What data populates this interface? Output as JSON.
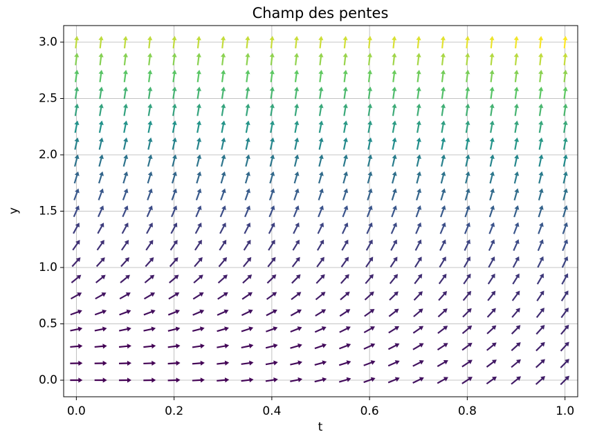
{
  "chart_data": {
    "type": "quiver",
    "title": "Champ des pentes",
    "x_label": "t",
    "y_label": "y",
    "x": [
      0,
      0.05,
      0.1,
      0.15,
      0.2,
      0.25,
      0.3,
      0.35,
      0.4,
      0.45,
      0.5,
      0.55,
      0.6,
      0.65,
      0.7,
      0.75,
      0.8,
      0.85,
      0.9,
      0.95,
      1
    ],
    "y": [
      0,
      0.15,
      0.3,
      0.45,
      0.6,
      0.75,
      0.9,
      1.05,
      1.2,
      1.35,
      1.5,
      1.65,
      1.8,
      1.95,
      2.1,
      2.25,
      2.4,
      2.55,
      2.7,
      2.85,
      3
    ],
    "slopes": [
      [
        0,
        0,
        0.01,
        0.02,
        0.04,
        0.06,
        0.09,
        0.12,
        0.16,
        0.2,
        0.25,
        0.3,
        0.36,
        0.42,
        0.49,
        0.56,
        0.64,
        0.72,
        0.81,
        0.9,
        1
      ],
      [
        0.02,
        0.02,
        0.03,
        0.04,
        0.06,
        0.08,
        0.11,
        0.14,
        0.18,
        0.22,
        0.27,
        0.32,
        0.38,
        0.44,
        0.51,
        0.58,
        0.66,
        0.74,
        0.83,
        0.92,
        1.02
      ],
      [
        0.09,
        0.09,
        0.1,
        0.11,
        0.13,
        0.15,
        0.18,
        0.21,
        0.25,
        0.29,
        0.34,
        0.39,
        0.45,
        0.51,
        0.58,
        0.65,
        0.73,
        0.81,
        0.9,
        0.99,
        1.09
      ],
      [
        0.2,
        0.2,
        0.21,
        0.22,
        0.24,
        0.26,
        0.29,
        0.32,
        0.36,
        0.4,
        0.45,
        0.5,
        0.56,
        0.62,
        0.69,
        0.76,
        0.84,
        0.92,
        1.01,
        1.1,
        1.2
      ],
      [
        0.36,
        0.36,
        0.37,
        0.38,
        0.4,
        0.42,
        0.45,
        0.48,
        0.52,
        0.56,
        0.61,
        0.66,
        0.72,
        0.78,
        0.85,
        0.92,
        1,
        1.08,
        1.17,
        1.26,
        1.36
      ],
      [
        0.56,
        0.56,
        0.57,
        0.58,
        0.6,
        0.62,
        0.65,
        0.68,
        0.72,
        0.76,
        0.81,
        0.86,
        0.92,
        0.98,
        1.05,
        1.12,
        1.2,
        1.28,
        1.37,
        1.46,
        1.56
      ],
      [
        0.81,
        0.81,
        0.82,
        0.83,
        0.85,
        0.87,
        0.9,
        0.93,
        0.97,
        1.01,
        1.06,
        1.11,
        1.17,
        1.23,
        1.3,
        1.37,
        1.45,
        1.53,
        1.62,
        1.71,
        1.81
      ],
      [
        1.1,
        1.1,
        1.11,
        1.12,
        1.14,
        1.16,
        1.19,
        1.22,
        1.26,
        1.3,
        1.35,
        1.4,
        1.46,
        1.52,
        1.59,
        1.66,
        1.74,
        1.82,
        1.91,
        2,
        2.1
      ],
      [
        1.44,
        1.44,
        1.45,
        1.46,
        1.48,
        1.5,
        1.53,
        1.56,
        1.6,
        1.64,
        1.69,
        1.74,
        1.8,
        1.86,
        1.93,
        2,
        2.08,
        2.16,
        2.25,
        2.34,
        2.44
      ],
      [
        1.82,
        1.82,
        1.83,
        1.84,
        1.86,
        1.88,
        1.91,
        1.94,
        1.98,
        2.02,
        2.07,
        2.12,
        2.18,
        2.24,
        2.31,
        2.38,
        2.46,
        2.54,
        2.63,
        2.72,
        2.82
      ],
      [
        2.25,
        2.25,
        2.26,
        2.27,
        2.29,
        2.31,
        2.34,
        2.37,
        2.41,
        2.45,
        2.5,
        2.55,
        2.61,
        2.67,
        2.74,
        2.81,
        2.89,
        2.97,
        3.06,
        3.15,
        3.25
      ],
      [
        2.72,
        2.72,
        2.73,
        2.74,
        2.76,
        2.78,
        2.81,
        2.84,
        2.88,
        2.92,
        2.97,
        3.02,
        3.08,
        3.14,
        3.21,
        3.28,
        3.36,
        3.44,
        3.53,
        3.62,
        3.72
      ],
      [
        3.24,
        3.24,
        3.25,
        3.26,
        3.28,
        3.3,
        3.33,
        3.36,
        3.4,
        3.44,
        3.49,
        3.54,
        3.6,
        3.66,
        3.73,
        3.8,
        3.88,
        3.96,
        4.05,
        4.14,
        4.24
      ],
      [
        3.8,
        3.8,
        3.81,
        3.82,
        3.84,
        3.86,
        3.89,
        3.92,
        3.96,
        4,
        4.05,
        4.1,
        4.16,
        4.22,
        4.29,
        4.36,
        4.44,
        4.52,
        4.61,
        4.7,
        4.8
      ],
      [
        4.41,
        4.41,
        4.42,
        4.43,
        4.45,
        4.47,
        4.5,
        4.53,
        4.57,
        4.61,
        4.66,
        4.71,
        4.77,
        4.83,
        4.9,
        4.97,
        5.05,
        5.13,
        5.22,
        5.31,
        5.41
      ],
      [
        5.06,
        5.06,
        5.07,
        5.08,
        5.1,
        5.12,
        5.15,
        5.18,
        5.22,
        5.26,
        5.31,
        5.36,
        5.42,
        5.48,
        5.55,
        5.62,
        5.7,
        5.78,
        5.87,
        5.96,
        6.06
      ],
      [
        5.76,
        5.76,
        5.77,
        5.78,
        5.8,
        5.82,
        5.85,
        5.88,
        5.92,
        5.96,
        6.01,
        6.06,
        6.12,
        6.18,
        6.25,
        6.32,
        6.4,
        6.48,
        6.57,
        6.66,
        6.76
      ],
      [
        6.5,
        6.5,
        6.51,
        6.52,
        6.54,
        6.56,
        6.59,
        6.62,
        6.66,
        6.7,
        6.75,
        6.8,
        6.86,
        6.92,
        6.99,
        7.06,
        7.14,
        7.22,
        7.31,
        7.4,
        7.5
      ],
      [
        7.29,
        7.29,
        7.3,
        7.31,
        7.33,
        7.35,
        7.38,
        7.41,
        7.45,
        7.49,
        7.54,
        7.59,
        7.65,
        7.71,
        7.78,
        7.85,
        7.93,
        8.01,
        8.1,
        8.19,
        8.29
      ],
      [
        8.12,
        8.12,
        8.13,
        8.14,
        8.16,
        8.18,
        8.21,
        8.24,
        8.28,
        8.32,
        8.37,
        8.42,
        8.48,
        8.54,
        8.61,
        8.68,
        8.76,
        8.84,
        8.93,
        9.02,
        9.12
      ],
      [
        9,
        9,
        9.01,
        9.02,
        9.04,
        9.06,
        9.09,
        9.12,
        9.16,
        9.2,
        9.25,
        9.3,
        9.36,
        9.42,
        9.49,
        9.56,
        9.64,
        9.72,
        9.81,
        9.9,
        10
      ]
    ],
    "colormap": [
      "#440154",
      "#3b528b",
      "#21918c",
      "#5ec962",
      "#fde725"
    ],
    "xlim": [
      -0.026,
      1.026
    ],
    "ylim": [
      -0.147,
      3.147
    ],
    "xticks": [
      {
        "value": 0,
        "label": "0.0"
      },
      {
        "value": 0.2,
        "label": "0.2"
      },
      {
        "value": 0.4,
        "label": "0.4"
      },
      {
        "value": 0.6,
        "label": "0.6"
      },
      {
        "value": 0.8,
        "label": "0.8"
      },
      {
        "value": 1,
        "label": "1.0"
      }
    ],
    "yticks": [
      {
        "value": 0,
        "label": "0.0"
      },
      {
        "value": 0.5,
        "label": "0.5"
      },
      {
        "value": 1,
        "label": "1.0"
      },
      {
        "value": 1.5,
        "label": "1.5"
      },
      {
        "value": 2,
        "label": "2.0"
      },
      {
        "value": 2.5,
        "label": "2.5"
      },
      {
        "value": 3,
        "label": "3.0"
      }
    ],
    "grid": true
  }
}
